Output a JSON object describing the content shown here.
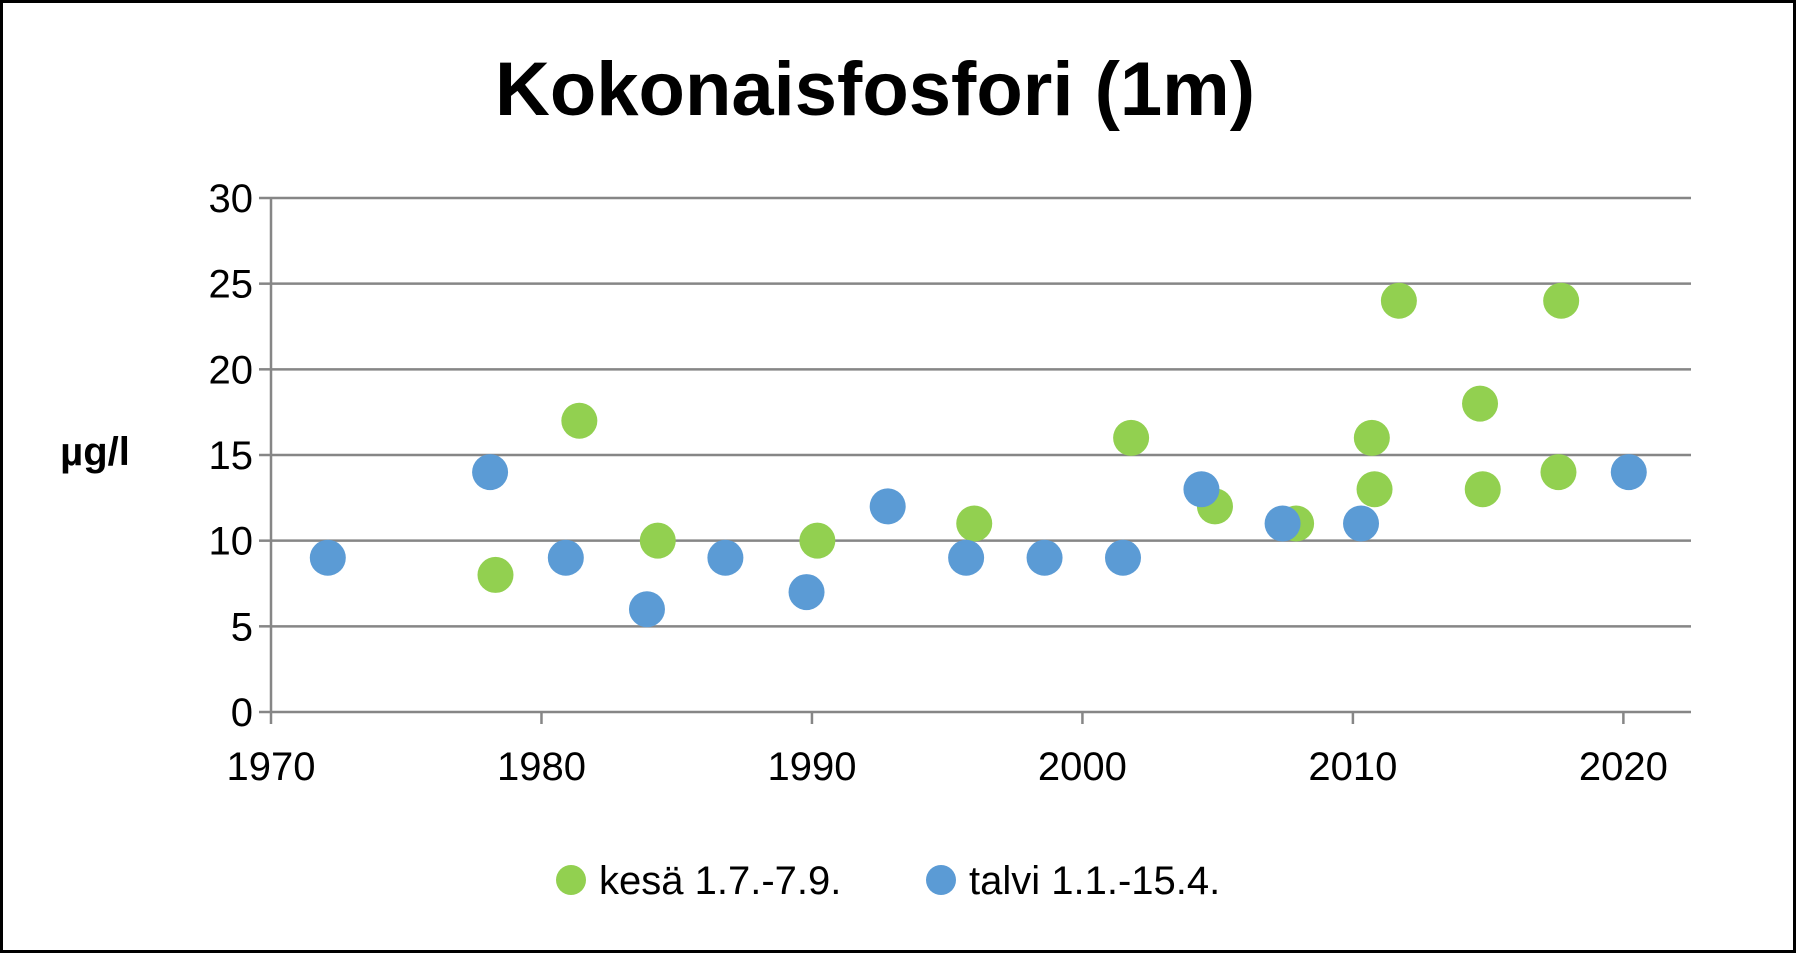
{
  "chart_data": {
    "type": "scatter",
    "title": "Kokonaisfosfori (1m)",
    "xlabel": "",
    "ylabel": "µg/l",
    "xlim": [
      1970,
      2022.5
    ],
    "ylim": [
      0,
      30
    ],
    "xticks": [
      1970,
      1980,
      1990,
      2000,
      2010,
      2020
    ],
    "yticks": [
      0,
      5,
      10,
      15,
      20,
      25,
      30
    ],
    "grid": "horizontal",
    "legend_position": "bottom",
    "series": [
      {
        "name": "kesä 1.7.-7.9.",
        "color": "#92D050",
        "points": [
          {
            "x": 1978.3,
            "y": 8
          },
          {
            "x": 1981.4,
            "y": 17
          },
          {
            "x": 1984.3,
            "y": 10
          },
          {
            "x": 1990.2,
            "y": 10
          },
          {
            "x": 1996.0,
            "y": 11
          },
          {
            "x": 2001.8,
            "y": 16
          },
          {
            "x": 2004.9,
            "y": 12
          },
          {
            "x": 2007.9,
            "y": 11
          },
          {
            "x": 2010.7,
            "y": 16
          },
          {
            "x": 2010.8,
            "y": 13
          },
          {
            "x": 2011.7,
            "y": 24
          },
          {
            "x": 2014.7,
            "y": 18
          },
          {
            "x": 2014.8,
            "y": 13
          },
          {
            "x": 2017.6,
            "y": 14
          },
          {
            "x": 2017.7,
            "y": 24
          }
        ]
      },
      {
        "name": "talvi 1.1.-15.4.",
        "color": "#5B9BD5",
        "points": [
          {
            "x": 1972.1,
            "y": 9
          },
          {
            "x": 1978.1,
            "y": 14
          },
          {
            "x": 1980.9,
            "y": 9
          },
          {
            "x": 1983.9,
            "y": 6
          },
          {
            "x": 1986.8,
            "y": 9
          },
          {
            "x": 1989.8,
            "y": 7
          },
          {
            "x": 1992.8,
            "y": 12
          },
          {
            "x": 1995.7,
            "y": 9
          },
          {
            "x": 1998.6,
            "y": 9
          },
          {
            "x": 2001.5,
            "y": 9
          },
          {
            "x": 2004.4,
            "y": 13
          },
          {
            "x": 2007.4,
            "y": 11
          },
          {
            "x": 2010.3,
            "y": 11
          },
          {
            "x": 2020.2,
            "y": 14
          }
        ]
      }
    ]
  }
}
